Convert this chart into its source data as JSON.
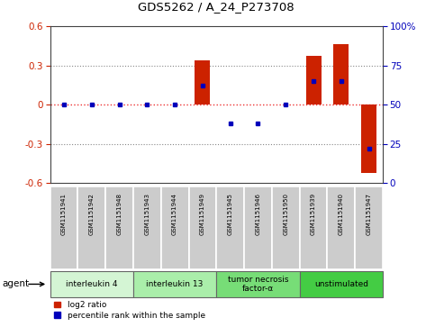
{
  "title": "GDS5262 / A_24_P273708",
  "samples": [
    "GSM1151941",
    "GSM1151942",
    "GSM1151948",
    "GSM1151943",
    "GSM1151944",
    "GSM1151949",
    "GSM1151945",
    "GSM1151946",
    "GSM1151950",
    "GSM1151939",
    "GSM1151940",
    "GSM1151947"
  ],
  "log2_ratio": [
    0.0,
    0.0,
    0.0,
    0.0,
    0.0,
    0.34,
    0.0,
    0.0,
    0.0,
    0.37,
    0.46,
    -0.52
  ],
  "percentile": [
    50,
    50,
    50,
    50,
    50,
    62,
    38,
    38,
    50,
    65,
    65,
    22
  ],
  "ylim": [
    -0.6,
    0.6
  ],
  "yticks_left": [
    -0.6,
    -0.3,
    0.0,
    0.3,
    0.6
  ],
  "yticks_right_vals": [
    0,
    25,
    50,
    75,
    100
  ],
  "yticks_right_pos": [
    -0.6,
    -0.3,
    0.0,
    0.3,
    0.6
  ],
  "agents": [
    {
      "label": "interleukin 4",
      "start": 0,
      "end": 3,
      "color": "#d4f5d4"
    },
    {
      "label": "interleukin 13",
      "start": 3,
      "end": 6,
      "color": "#aaeeaa"
    },
    {
      "label": "tumor necrosis\nfactor-α",
      "start": 6,
      "end": 9,
      "color": "#77dd77"
    },
    {
      "label": "unstimulated",
      "start": 9,
      "end": 12,
      "color": "#44cc44"
    }
  ],
  "bar_color": "#cc2200",
  "dot_color": "#0000bb",
  "zero_line_color": "#ee3333",
  "grid_color": "#888888",
  "sample_box_color": "#cccccc",
  "sample_box_edge": "#aaaaaa",
  "left_label_color": "#cc2200",
  "right_label_color": "#0000bb",
  "legend_items": [
    {
      "color": "#cc2200",
      "label": "log2 ratio"
    },
    {
      "color": "#0000bb",
      "label": "percentile rank within the sample"
    }
  ]
}
